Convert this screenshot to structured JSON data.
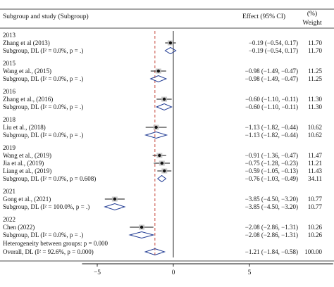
{
  "header": {
    "study": "Subgroup and study (Subgroup)",
    "effect": "Effect (95% CI)",
    "weight_pct": "(%)",
    "weight": "Weight"
  },
  "colors": {
    "ci_line": "#111111",
    "point": "#111111",
    "diamond": "#1f3a93",
    "overall_line": "#c0392b",
    "rule": "#111111"
  },
  "chart_data": {
    "type": "forest",
    "x_ticks": [
      -5,
      0,
      5
    ],
    "xlim": [
      -6.0,
      10.5
    ],
    "overall_line_x": -1.21,
    "null_line_x": 0,
    "rows": [
      {
        "kind": "group",
        "label": "2013"
      },
      {
        "kind": "study",
        "label": "Zhang et al (2013)",
        "est": -0.19,
        "lo": -0.54,
        "hi": 0.17,
        "effect": "−0.19 (−0.54, 0.17)",
        "weight": "11.70"
      },
      {
        "kind": "subgroup",
        "label": "Subgroup, DL (I² = 0.0%, p = .)",
        "est": -0.19,
        "lo": -0.54,
        "hi": 0.17,
        "effect": "−0.19 (−0.54, 0.17)",
        "weight": "11.70"
      },
      {
        "kind": "group",
        "label": "2015"
      },
      {
        "kind": "study",
        "label": "Wang et al., (2015)",
        "est": -0.98,
        "lo": -1.49,
        "hi": -0.47,
        "effect": "−0.98 (−1.49, −0.47)",
        "weight": "11.25"
      },
      {
        "kind": "subgroup",
        "label": "Subgroup, DL (I² = 0.0%, p = .)",
        "est": -0.98,
        "lo": -1.49,
        "hi": -0.47,
        "effect": "−0.98 (−1.49, −0.47)",
        "weight": "11.25"
      },
      {
        "kind": "group",
        "label": "2016"
      },
      {
        "kind": "study",
        "label": "Zhang et al., (2016)",
        "est": -0.6,
        "lo": -1.1,
        "hi": -0.11,
        "effect": "−0.60 (−1.10, −0.11)",
        "weight": "11.30"
      },
      {
        "kind": "subgroup",
        "label": "Subgroup, DL (I² = 0.0%, p = .)",
        "est": -0.6,
        "lo": -1.1,
        "hi": -0.11,
        "effect": "−0.60 (−1.10, −0.11)",
        "weight": "11.30"
      },
      {
        "kind": "group",
        "label": "2018"
      },
      {
        "kind": "study",
        "label": "Liu et al., (2018)",
        "est": -1.13,
        "lo": -1.82,
        "hi": -0.44,
        "effect": "−1.13 (−1.82, −0.44)",
        "weight": "10.62"
      },
      {
        "kind": "subgroup",
        "label": "Subgroup, DL (I² = 0.0%, p = .)",
        "est": -1.13,
        "lo": -1.82,
        "hi": -0.44,
        "effect": "−1.13 (−1.82, −0.44)",
        "weight": "10.62"
      },
      {
        "kind": "group",
        "label": "2019"
      },
      {
        "kind": "study",
        "label": "Wang et al., (2019)",
        "est": -0.91,
        "lo": -1.36,
        "hi": -0.47,
        "effect": "−0.91 (−1.36, −0.47)",
        "weight": "11.47"
      },
      {
        "kind": "study",
        "label": "Jia et al., (2019)",
        "est": -0.75,
        "lo": -1.28,
        "hi": -0.23,
        "effect": "−0.75 (−1.28, −0.23)",
        "weight": "11.21"
      },
      {
        "kind": "study",
        "label": "Liang et al., (2019)",
        "est": -0.59,
        "lo": -1.05,
        "hi": -0.13,
        "effect": "−0.59 (−1.05, −0.13)",
        "weight": "11.43"
      },
      {
        "kind": "subgroup",
        "label": "Subgroup, DL (I² = 0.0%, p = 0.608)",
        "est": -0.76,
        "lo": -1.03,
        "hi": -0.49,
        "effect": "−0.76 (−1.03, −0.49)",
        "weight": "34.11"
      },
      {
        "kind": "group",
        "label": "2021"
      },
      {
        "kind": "study",
        "label": "Gong et al., (2021)",
        "est": -3.85,
        "lo": -4.5,
        "hi": -3.2,
        "effect": "−3.85 (−4.50, −3.20)",
        "weight": "10.77"
      },
      {
        "kind": "subgroup",
        "label": "Subgroup, DL (I² = 100.0%, p = .)",
        "est": -3.85,
        "lo": -4.5,
        "hi": -3.2,
        "effect": "−3.85 (−4.50, −3.20)",
        "weight": "10.77"
      },
      {
        "kind": "group",
        "label": "2022"
      },
      {
        "kind": "study",
        "label": "Chen (2022)",
        "est": -2.08,
        "lo": -2.86,
        "hi": -1.31,
        "effect": "−2.08 (−2.86, −1.31)",
        "weight": "10.26"
      },
      {
        "kind": "subgroup",
        "label": "Subgroup, DL (I² = 0.0%, p = .)",
        "est": -2.08,
        "lo": -2.86,
        "hi": -1.31,
        "effect": "−2.08 (−2.86, −1.31)",
        "weight": "10.26"
      },
      {
        "kind": "note",
        "label": "Heterogeneity between groups: p = 0.000"
      },
      {
        "kind": "overall",
        "label": "Overall, DL (I² = 92.6%, p = 0.000)",
        "est": -1.21,
        "lo": -1.84,
        "hi": -0.58,
        "effect": "−1.21 (−1.84, −0.58)",
        "weight": "100.00"
      }
    ]
  }
}
